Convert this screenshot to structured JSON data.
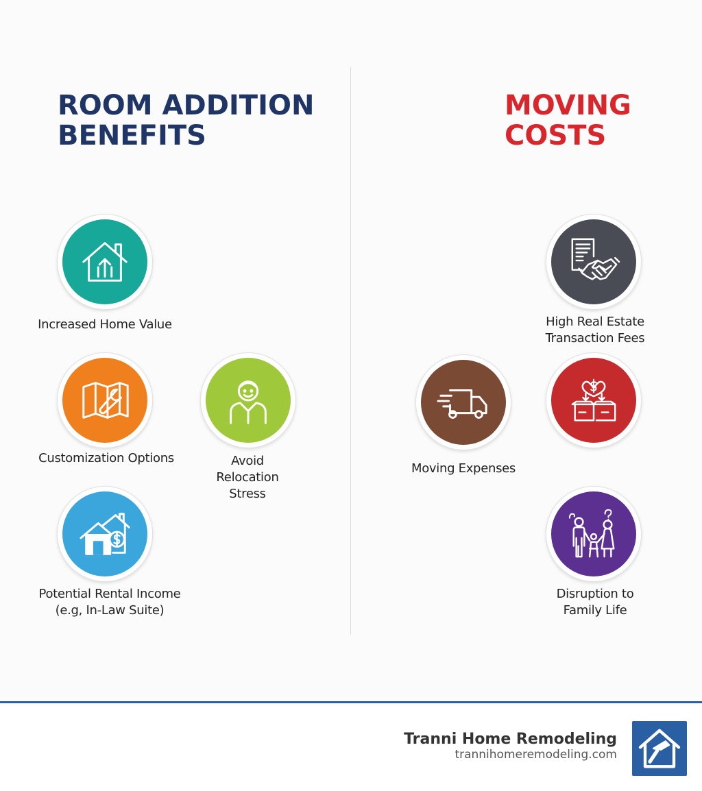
{
  "left_column": {
    "heading_line1": "ROOM ADDITION",
    "heading_line2": "BENEFITS",
    "heading_color": "#1f3566",
    "items": [
      {
        "label": "Increased Home Value",
        "icon": "house-arrow-up-icon",
        "color": "#17a89a"
      },
      {
        "label": "Customization Options",
        "icon": "blueprint-wrench-icon",
        "color": "#f07f1e"
      },
      {
        "label_lines": [
          "Avoid",
          "Relocation",
          "Stress"
        ],
        "icon": "smiling-person-icon",
        "color": "#9fc93a"
      },
      {
        "label_lines": [
          "Potential Rental Income",
          "(e.g, In-Law Suite)"
        ],
        "icon": "house-dollar-icon",
        "color": "#3aa6dc"
      }
    ]
  },
  "right_column": {
    "heading_line1": "MOVING",
    "heading_line2": "COSTS",
    "heading_color": "#d8262d",
    "items": [
      {
        "label_lines": [
          "High Real Estate",
          "Transaction Fees"
        ],
        "icon": "contract-handshake-icon",
        "color": "#4a4c55"
      },
      {
        "label": "Moving Expenses",
        "icon": "moving-truck-icon",
        "color": "#7b4a35"
      },
      {
        "label": "",
        "icon": "boxes-money-icon",
        "color": "#c52a2d"
      },
      {
        "label_lines": [
          "Disruption to",
          "Family Life"
        ],
        "icon": "family-question-icon",
        "color": "#5b3090"
      }
    ]
  },
  "footer": {
    "brand_name": "Tranni Home Remodeling",
    "brand_url": "trannihomeremodeling.com",
    "logo_icon": "house-hammer-icon",
    "accent": "#2d5fa0"
  }
}
